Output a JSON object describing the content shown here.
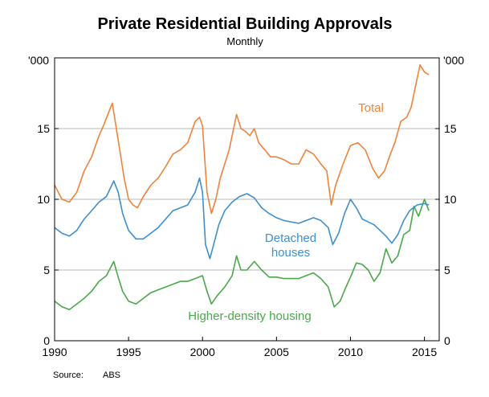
{
  "chart_data": {
    "type": "line",
    "title": "Private Residential Building Approvals",
    "subtitle": "Monthly",
    "unit_left": "'000",
    "unit_right": "'000",
    "source_label": "Source:",
    "source_value": "ABS",
    "x_range": [
      1990.0,
      2016.0
    ],
    "ylim": [
      0,
      20
    ],
    "x_ticks": [
      {
        "value": 1990,
        "label": "1990"
      },
      {
        "value": 1995,
        "label": "1995"
      },
      {
        "value": 2000,
        "label": "2000"
      },
      {
        "value": 2005,
        "label": "2005"
      },
      {
        "value": 2010,
        "label": "2010"
      },
      {
        "value": 2015,
        "label": "2015"
      }
    ],
    "y_ticks": [
      {
        "value": 0,
        "label": "0"
      },
      {
        "value": 5,
        "label": "5"
      },
      {
        "value": 10,
        "label": "10"
      },
      {
        "value": 15,
        "label": "15"
      }
    ],
    "grid": true,
    "colors": {
      "total": "#f0823c",
      "detached": "#3c8fd0",
      "higher": "#4aa84a"
    },
    "series": [
      {
        "name": "Total",
        "label_lines": [
          "Total"
        ],
        "color": "#f0823c",
        "x": [
          1990.0,
          1990.5,
          1991.0,
          1991.5,
          1992.0,
          1992.5,
          1993.0,
          1993.3,
          1993.6,
          1993.9,
          1994.1,
          1994.4,
          1994.7,
          1995.0,
          1995.3,
          1995.6,
          1996.0,
          1996.5,
          1997.0,
          1997.5,
          1998.0,
          1998.5,
          1999.0,
          1999.5,
          1999.8,
          2000.0,
          2000.3,
          2000.6,
          2000.9,
          2001.2,
          2001.5,
          2001.8,
          2002.0,
          2002.3,
          2002.6,
          2002.9,
          2003.2,
          2003.5,
          2003.8,
          2004.2,
          2004.6,
          2005.0,
          2005.5,
          2006.0,
          2006.5,
          2007.0,
          2007.5,
          2008.0,
          2008.4,
          2008.7,
          2009.0,
          2009.5,
          2010.0,
          2010.5,
          2011.0,
          2011.5,
          2011.9,
          2012.3,
          2012.7,
          2013.0,
          2013.4,
          2013.8,
          2014.1,
          2014.4,
          2014.7,
          2015.0,
          2015.3
        ],
        "values": [
          11.0,
          10.0,
          9.8,
          10.5,
          12.0,
          13.0,
          14.5,
          15.2,
          16.0,
          16.8,
          15.5,
          13.5,
          11.5,
          10.0,
          9.6,
          9.4,
          10.2,
          11.0,
          11.5,
          12.3,
          13.2,
          13.5,
          14.0,
          15.5,
          15.8,
          15.2,
          10.5,
          9.0,
          10.0,
          11.5,
          12.5,
          13.5,
          14.5,
          16.0,
          15.0,
          14.8,
          14.5,
          15.0,
          14.0,
          13.5,
          13.0,
          13.0,
          12.8,
          12.5,
          12.5,
          13.5,
          13.2,
          12.5,
          12.0,
          9.6,
          11.0,
          12.5,
          13.8,
          14.0,
          13.5,
          12.2,
          11.5,
          12.0,
          13.2,
          14.0,
          15.5,
          15.8,
          16.5,
          18.0,
          19.5,
          19.0,
          18.8
        ]
      },
      {
        "name": "Detached houses",
        "label_lines": [
          "Detached",
          "houses"
        ],
        "color": "#3c8fd0",
        "x": [
          1990.0,
          1990.5,
          1991.0,
          1991.5,
          1992.0,
          1992.5,
          1993.0,
          1993.5,
          1994.0,
          1994.3,
          1994.6,
          1995.0,
          1995.5,
          1996.0,
          1996.5,
          1997.0,
          1997.5,
          1998.0,
          1998.5,
          1999.0,
          1999.5,
          1999.8,
          2000.0,
          2000.2,
          2000.5,
          2000.8,
          2001.1,
          2001.5,
          2002.0,
          2002.5,
          2003.0,
          2003.5,
          2004.0,
          2004.5,
          2005.0,
          2005.5,
          2006.0,
          2006.5,
          2007.0,
          2007.5,
          2008.0,
          2008.5,
          2008.8,
          2009.2,
          2009.6,
          2010.0,
          2010.4,
          2010.8,
          2011.2,
          2011.6,
          2012.0,
          2012.4,
          2012.8,
          2013.2,
          2013.6,
          2014.0,
          2014.5,
          2015.0,
          2015.3
        ],
        "values": [
          8.0,
          7.6,
          7.4,
          7.8,
          8.6,
          9.2,
          9.8,
          10.2,
          11.3,
          10.5,
          9.0,
          7.8,
          7.2,
          7.2,
          7.6,
          8.0,
          8.6,
          9.2,
          9.4,
          9.6,
          10.5,
          11.5,
          10.5,
          6.8,
          5.8,
          7.0,
          8.2,
          9.2,
          9.8,
          10.2,
          10.4,
          10.1,
          9.4,
          9.0,
          8.7,
          8.5,
          8.4,
          8.3,
          8.5,
          8.7,
          8.5,
          8.0,
          6.8,
          7.6,
          9.0,
          10.0,
          9.4,
          8.6,
          8.4,
          8.2,
          7.8,
          7.4,
          6.9,
          7.5,
          8.5,
          9.2,
          9.6,
          9.7,
          9.6
        ]
      },
      {
        "name": "Higher-density housing",
        "label_lines": [
          "Higher-density housing"
        ],
        "color": "#4aa84a",
        "x": [
          1990.0,
          1990.5,
          1991.0,
          1991.5,
          1992.0,
          1992.5,
          1993.0,
          1993.5,
          1994.0,
          1994.3,
          1994.6,
          1995.0,
          1995.5,
          1996.0,
          1996.5,
          1997.0,
          1997.5,
          1998.0,
          1998.5,
          1999.0,
          1999.5,
          2000.0,
          2000.3,
          2000.6,
          2001.0,
          2001.5,
          2002.0,
          2002.3,
          2002.6,
          2003.0,
          2003.5,
          2004.0,
          2004.5,
          2005.0,
          2005.5,
          2006.0,
          2006.5,
          2007.0,
          2007.5,
          2008.0,
          2008.5,
          2008.9,
          2009.3,
          2009.7,
          2010.0,
          2010.4,
          2010.8,
          2011.2,
          2011.6,
          2012.0,
          2012.4,
          2012.8,
          2013.2,
          2013.6,
          2014.0,
          2014.3,
          2014.6,
          2015.0,
          2015.3
        ],
        "values": [
          2.8,
          2.4,
          2.2,
          2.6,
          3.0,
          3.5,
          4.2,
          4.6,
          5.6,
          4.5,
          3.5,
          2.8,
          2.6,
          3.0,
          3.4,
          3.6,
          3.8,
          4.0,
          4.2,
          4.2,
          4.4,
          4.6,
          3.5,
          2.6,
          3.2,
          3.8,
          4.6,
          6.0,
          5.0,
          5.0,
          5.6,
          5.0,
          4.5,
          4.5,
          4.4,
          4.4,
          4.4,
          4.6,
          4.8,
          4.4,
          3.8,
          2.4,
          2.8,
          3.8,
          4.5,
          5.5,
          5.4,
          5.0,
          4.2,
          4.8,
          6.5,
          5.5,
          6.0,
          7.5,
          7.8,
          9.5,
          8.8,
          10.0,
          9.2
        ]
      }
    ]
  }
}
